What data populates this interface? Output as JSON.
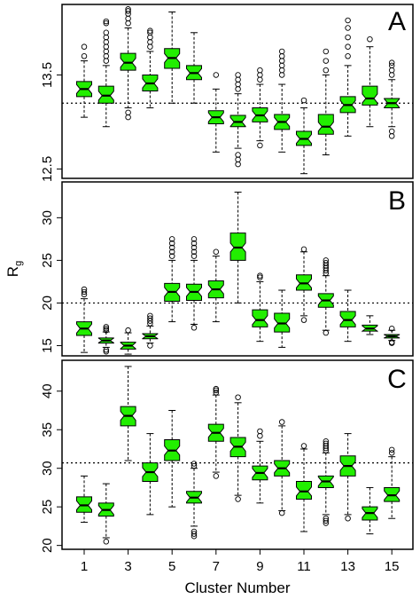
{
  "chart_data": [
    {
      "type": "box",
      "panel_label": "A",
      "categories": [
        1,
        2,
        3,
        4,
        5,
        6,
        7,
        8,
        9,
        10,
        11,
        12,
        13,
        14,
        15
      ],
      "y_ticks": [
        "12.5",
        "13.5"
      ],
      "y_tick_values": [
        12.5,
        13.5
      ],
      "ylim": [
        12.4,
        14.25
      ],
      "reference_line": 13.2,
      "boxes": [
        {
          "cluster": 1,
          "low": 13.05,
          "q1": 13.27,
          "median": 13.35,
          "q3": 13.43,
          "high": 13.65,
          "outliers": [
            13.7,
            13.8
          ]
        },
        {
          "cluster": 2,
          "low": 12.95,
          "q1": 13.2,
          "median": 13.28,
          "q3": 13.38,
          "high": 13.6,
          "outliers": [
            13.65,
            13.7,
            13.75,
            13.8,
            13.85,
            13.9,
            13.95,
            14.05,
            14.07
          ]
        },
        {
          "cluster": 3,
          "low": 13.15,
          "q1": 13.55,
          "median": 13.63,
          "q3": 13.73,
          "high": 14.0,
          "outliers": [
            14.05,
            14.1,
            14.15,
            14.18,
            14.2,
            13.1,
            13.05
          ]
        },
        {
          "cluster": 4,
          "low": 13.15,
          "q1": 13.33,
          "median": 13.41,
          "q3": 13.5,
          "high": 13.75,
          "outliers": [
            13.8,
            13.85,
            13.9,
            13.95,
            13.97
          ]
        },
        {
          "cluster": 5,
          "low": 13.2,
          "q1": 13.57,
          "median": 13.68,
          "q3": 13.78,
          "high": 14.17,
          "outliers": []
        },
        {
          "cluster": 6,
          "low": 13.2,
          "q1": 13.45,
          "median": 13.52,
          "q3": 13.6,
          "high": 13.95,
          "outliers": []
        },
        {
          "cluster": 7,
          "low": 12.68,
          "q1": 12.98,
          "median": 13.05,
          "q3": 13.12,
          "high": 13.35,
          "outliers": [
            13.5
          ]
        },
        {
          "cluster": 8,
          "low": 12.72,
          "q1": 12.95,
          "median": 13.0,
          "q3": 13.07,
          "high": 13.3,
          "outliers": [
            13.35,
            13.4,
            13.45,
            13.5,
            12.65,
            12.6,
            12.55
          ]
        },
        {
          "cluster": 9,
          "low": 12.8,
          "q1": 13.0,
          "median": 13.07,
          "q3": 13.15,
          "high": 13.4,
          "outliers": [
            13.45,
            13.5,
            13.55,
            12.75
          ]
        },
        {
          "cluster": 10,
          "low": 12.68,
          "q1": 12.92,
          "median": 13.0,
          "q3": 13.08,
          "high": 13.4,
          "outliers": [
            13.5,
            13.55,
            13.6,
            13.65,
            13.7,
            13.75
          ]
        },
        {
          "cluster": 11,
          "low": 12.45,
          "q1": 12.75,
          "median": 12.82,
          "q3": 12.9,
          "high": 13.15,
          "outliers": [
            13.23
          ]
        },
        {
          "cluster": 12,
          "low": 12.65,
          "q1": 12.87,
          "median": 12.95,
          "q3": 13.08,
          "high": 13.5,
          "outliers": [
            13.55,
            13.65,
            13.75
          ]
        },
        {
          "cluster": 13,
          "low": 12.85,
          "q1": 13.1,
          "median": 13.18,
          "q3": 13.27,
          "high": 13.6,
          "outliers": [
            13.7,
            13.8,
            13.9,
            14.0,
            14.08
          ]
        },
        {
          "cluster": 14,
          "low": 12.95,
          "q1": 13.18,
          "median": 13.25,
          "q3": 13.38,
          "high": 13.8,
          "outliers": [
            13.88
          ]
        },
        {
          "cluster": 15,
          "low": 12.95,
          "q1": 13.15,
          "median": 13.2,
          "q3": 13.25,
          "high": 13.45,
          "outliers": [
            13.5,
            13.55,
            13.6,
            13.63,
            12.9,
            12.85
          ]
        }
      ]
    },
    {
      "type": "box",
      "panel_label": "B",
      "ylabel": "R",
      "ylabel_sub": "g",
      "categories": [
        1,
        2,
        3,
        4,
        5,
        6,
        7,
        8,
        9,
        10,
        11,
        12,
        13,
        14,
        15
      ],
      "y_ticks": [
        "15",
        "20",
        "25",
        "30"
      ],
      "y_tick_values": [
        15,
        20,
        25,
        30
      ],
      "ylim": [
        13.8,
        34.2
      ],
      "reference_line": 20.0,
      "boxes": [
        {
          "cluster": 1,
          "low": 14.2,
          "q1": 16.2,
          "median": 17.0,
          "q3": 17.8,
          "high": 20.5,
          "outliers": [
            21.0,
            21.3,
            21.6
          ]
        },
        {
          "cluster": 2,
          "low": 14.8,
          "q1": 15.3,
          "median": 15.6,
          "q3": 15.9,
          "high": 16.6,
          "outliers": [
            16.8,
            17.0,
            17.2,
            14.5,
            14.3
          ]
        },
        {
          "cluster": 3,
          "low": 14.0,
          "q1": 14.6,
          "median": 15.0,
          "q3": 15.4,
          "high": 16.5,
          "outliers": [
            16.8
          ]
        },
        {
          "cluster": 4,
          "low": 15.3,
          "q1": 15.8,
          "median": 16.1,
          "q3": 16.4,
          "high": 17.3,
          "outliers": [
            17.6,
            17.9,
            18.2,
            18.5,
            15.0
          ]
        },
        {
          "cluster": 5,
          "low": 17.8,
          "q1": 20.2,
          "median": 21.3,
          "q3": 22.3,
          "high": 25.0,
          "outliers": [
            25.5,
            26.0,
            26.5,
            27.0,
            27.5
          ]
        },
        {
          "cluster": 6,
          "low": 17.5,
          "q1": 20.3,
          "median": 21.3,
          "q3": 22.2,
          "high": 25.0,
          "outliers": [
            25.5,
            26.0,
            26.5,
            27.0,
            27.5,
            17.1
          ]
        },
        {
          "cluster": 7,
          "low": 17.8,
          "q1": 20.6,
          "median": 21.6,
          "q3": 22.6,
          "high": 25.5,
          "outliers": [
            26.0
          ]
        },
        {
          "cluster": 8,
          "low": 20.0,
          "q1": 25.0,
          "median": 26.5,
          "q3": 28.2,
          "high": 33.0,
          "outliers": []
        },
        {
          "cluster": 9,
          "low": 15.5,
          "q1": 17.2,
          "median": 18.0,
          "q3": 19.2,
          "high": 22.5,
          "outliers": [
            23.0,
            23.2
          ]
        },
        {
          "cluster": 10,
          "low": 14.8,
          "q1": 16.6,
          "median": 17.6,
          "q3": 18.8,
          "high": 21.5,
          "outliers": []
        },
        {
          "cluster": 11,
          "low": 18.5,
          "q1": 21.5,
          "median": 22.3,
          "q3": 23.3,
          "high": 26.0,
          "outliers": [
            26.3,
            18.0
          ]
        },
        {
          "cluster": 12,
          "low": 16.8,
          "q1": 19.5,
          "median": 20.3,
          "q3": 21.1,
          "high": 23.2,
          "outliers": [
            23.5,
            23.8,
            24.1,
            24.4,
            24.7,
            25.0,
            16.5
          ]
        },
        {
          "cluster": 13,
          "low": 15.5,
          "q1": 17.2,
          "median": 18.0,
          "q3": 19.0,
          "high": 21.5,
          "outliers": []
        },
        {
          "cluster": 14,
          "low": 16.3,
          "q1": 16.7,
          "median": 17.0,
          "q3": 17.4,
          "high": 18.5,
          "outliers": []
        },
        {
          "cluster": 15,
          "low": 15.6,
          "q1": 15.9,
          "median": 16.1,
          "q3": 16.3,
          "high": 16.8,
          "outliers": [
            17.0,
            15.4,
            15.3
          ]
        }
      ]
    },
    {
      "type": "box",
      "panel_label": "C",
      "xlabel": "Cluster Number",
      "categories": [
        1,
        2,
        3,
        4,
        5,
        6,
        7,
        8,
        9,
        10,
        11,
        12,
        13,
        14,
        15
      ],
      "x_ticks": [
        "1",
        "3",
        "5",
        "7",
        "9",
        "11",
        "13",
        "15"
      ],
      "x_tick_values": [
        1,
        3,
        5,
        7,
        9,
        11,
        13,
        15
      ],
      "y_ticks": [
        "20",
        "25",
        "30",
        "35",
        "40"
      ],
      "y_tick_values": [
        20,
        25,
        30,
        35,
        40
      ],
      "ylim": [
        19.5,
        44.0
      ],
      "reference_line": 30.7,
      "boxes": [
        {
          "cluster": 1,
          "low": 23.0,
          "q1": 24.3,
          "median": 25.2,
          "q3": 26.3,
          "high": 29.0,
          "outliers": []
        },
        {
          "cluster": 2,
          "low": 21.0,
          "q1": 23.8,
          "median": 24.6,
          "q3": 25.5,
          "high": 28.0,
          "outliers": [
            20.5
          ]
        },
        {
          "cluster": 3,
          "low": 31.0,
          "q1": 35.5,
          "median": 36.8,
          "q3": 38.0,
          "high": 43.2,
          "outliers": []
        },
        {
          "cluster": 4,
          "low": 24.0,
          "q1": 28.3,
          "median": 29.5,
          "q3": 30.7,
          "high": 34.5,
          "outliers": []
        },
        {
          "cluster": 5,
          "low": 25.0,
          "q1": 31.0,
          "median": 32.3,
          "q3": 33.7,
          "high": 37.5,
          "outliers": []
        },
        {
          "cluster": 6,
          "low": 22.5,
          "q1": 25.5,
          "median": 26.2,
          "q3": 27.0,
          "high": 30.0,
          "outliers": [
            30.3,
            30.6,
            21.8,
            21.5,
            21.2
          ]
        },
        {
          "cluster": 7,
          "low": 29.5,
          "q1": 33.5,
          "median": 34.6,
          "q3": 35.7,
          "high": 39.5,
          "outliers": [
            39.8,
            40.1,
            40.3,
            29.0
          ]
        },
        {
          "cluster": 8,
          "low": 26.5,
          "q1": 31.5,
          "median": 32.8,
          "q3": 34.0,
          "high": 38.5,
          "outliers": [
            39.2,
            26.0
          ]
        },
        {
          "cluster": 9,
          "low": 25.5,
          "q1": 28.5,
          "median": 29.4,
          "q3": 30.3,
          "high": 33.5,
          "outliers": [
            34.2,
            34.8
          ]
        },
        {
          "cluster": 10,
          "low": 24.5,
          "q1": 29.0,
          "median": 30.0,
          "q3": 31.0,
          "high": 35.5,
          "outliers": [
            36.0,
            24.2
          ]
        },
        {
          "cluster": 11,
          "low": 21.8,
          "q1": 26.0,
          "median": 27.0,
          "q3": 28.3,
          "high": 32.5,
          "outliers": [
            32.9
          ]
        },
        {
          "cluster": 12,
          "low": 24.0,
          "q1": 27.5,
          "median": 28.3,
          "q3": 29.0,
          "high": 32.0,
          "outliers": [
            32.3,
            32.6,
            32.9,
            33.2,
            33.5,
            23.5,
            23.2,
            22.9
          ]
        },
        {
          "cluster": 13,
          "low": 24.0,
          "q1": 29.0,
          "median": 30.3,
          "q3": 31.6,
          "high": 34.5,
          "outliers": [
            23.5
          ]
        },
        {
          "cluster": 14,
          "low": 21.5,
          "q1": 23.3,
          "median": 24.2,
          "q3": 25.0,
          "high": 27.5,
          "outliers": []
        },
        {
          "cluster": 15,
          "low": 23.5,
          "q1": 25.7,
          "median": 26.5,
          "q3": 27.5,
          "high": 31.5,
          "outliers": [
            32.0,
            32.4
          ]
        }
      ]
    }
  ],
  "colors": {
    "box_fill": "#22ee00",
    "stroke": "#000000",
    "background": "#ffffff"
  }
}
